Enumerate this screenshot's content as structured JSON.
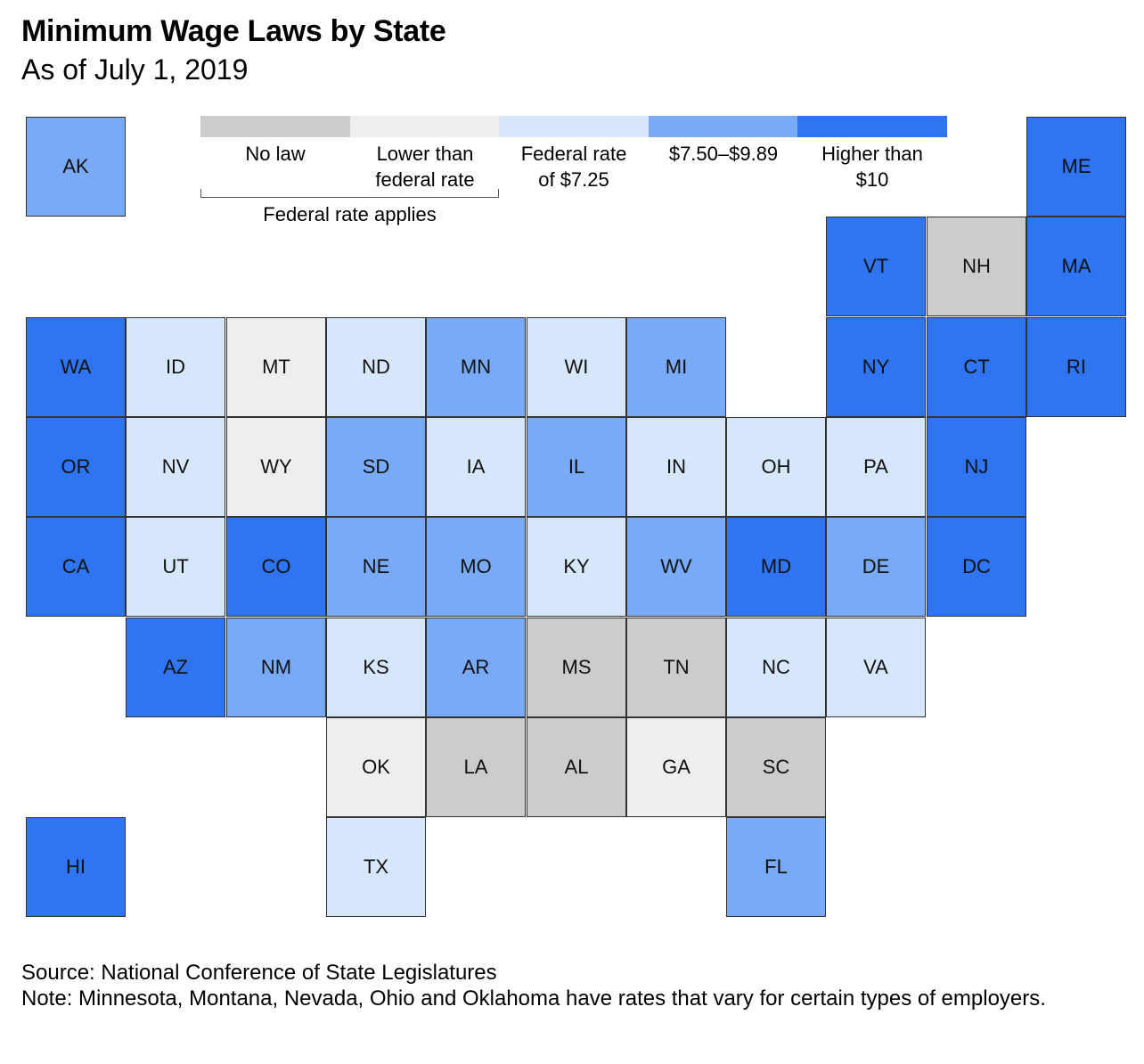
{
  "title": "Minimum Wage Laws by State",
  "subtitle": "As of July 1, 2019",
  "legend": {
    "items": [
      {
        "key": "none",
        "label": "No law",
        "color": "#cccccc"
      },
      {
        "key": "lower",
        "label": "Lower than federal rate",
        "color": "#eeeeee"
      },
      {
        "key": "federal",
        "label": "Federal rate of $7.25",
        "color": "#d6e6fb"
      },
      {
        "key": "mid",
        "label": "$7.50–$9.89",
        "color": "#78aaf7"
      },
      {
        "key": "high",
        "label": "Higher than $10",
        "color": "#2f74f3"
      }
    ],
    "group_label": "Federal rate applies"
  },
  "states": [
    {
      "code": "AK",
      "category": "mid",
      "col": 0,
      "row": 0
    },
    {
      "code": "ME",
      "category": "high",
      "col": 10,
      "row": 0
    },
    {
      "code": "VT",
      "category": "high",
      "col": 8,
      "row": 1
    },
    {
      "code": "NH",
      "category": "none",
      "col": 9,
      "row": 1
    },
    {
      "code": "MA",
      "category": "high",
      "col": 10,
      "row": 1
    },
    {
      "code": "WA",
      "category": "high",
      "col": 0,
      "row": 2
    },
    {
      "code": "ID",
      "category": "federal",
      "col": 1,
      "row": 2
    },
    {
      "code": "MT",
      "category": "lower",
      "col": 2,
      "row": 2
    },
    {
      "code": "ND",
      "category": "federal",
      "col": 3,
      "row": 2
    },
    {
      "code": "MN",
      "category": "mid",
      "col": 4,
      "row": 2
    },
    {
      "code": "WI",
      "category": "federal",
      "col": 5,
      "row": 2
    },
    {
      "code": "MI",
      "category": "mid",
      "col": 6,
      "row": 2
    },
    {
      "code": "NY",
      "category": "high",
      "col": 8,
      "row": 2
    },
    {
      "code": "CT",
      "category": "high",
      "col": 9,
      "row": 2
    },
    {
      "code": "RI",
      "category": "high",
      "col": 10,
      "row": 2
    },
    {
      "code": "OR",
      "category": "high",
      "col": 0,
      "row": 3
    },
    {
      "code": "NV",
      "category": "federal",
      "col": 1,
      "row": 3
    },
    {
      "code": "WY",
      "category": "lower",
      "col": 2,
      "row": 3
    },
    {
      "code": "SD",
      "category": "mid",
      "col": 3,
      "row": 3
    },
    {
      "code": "IA",
      "category": "federal",
      "col": 4,
      "row": 3
    },
    {
      "code": "IL",
      "category": "mid",
      "col": 5,
      "row": 3
    },
    {
      "code": "IN",
      "category": "federal",
      "col": 6,
      "row": 3
    },
    {
      "code": "OH",
      "category": "federal",
      "col": 7,
      "row": 3
    },
    {
      "code": "PA",
      "category": "federal",
      "col": 8,
      "row": 3
    },
    {
      "code": "NJ",
      "category": "high",
      "col": 9,
      "row": 3
    },
    {
      "code": "CA",
      "category": "high",
      "col": 0,
      "row": 4
    },
    {
      "code": "UT",
      "category": "federal",
      "col": 1,
      "row": 4
    },
    {
      "code": "CO",
      "category": "high",
      "col": 2,
      "row": 4
    },
    {
      "code": "NE",
      "category": "mid",
      "col": 3,
      "row": 4
    },
    {
      "code": "MO",
      "category": "mid",
      "col": 4,
      "row": 4
    },
    {
      "code": "KY",
      "category": "federal",
      "col": 5,
      "row": 4
    },
    {
      "code": "WV",
      "category": "mid",
      "col": 6,
      "row": 4
    },
    {
      "code": "MD",
      "category": "high",
      "col": 7,
      "row": 4
    },
    {
      "code": "DE",
      "category": "mid",
      "col": 8,
      "row": 4
    },
    {
      "code": "DC",
      "category": "high",
      "col": 9,
      "row": 4
    },
    {
      "code": "AZ",
      "category": "high",
      "col": 1,
      "row": 5
    },
    {
      "code": "NM",
      "category": "mid",
      "col": 2,
      "row": 5
    },
    {
      "code": "KS",
      "category": "federal",
      "col": 3,
      "row": 5
    },
    {
      "code": "AR",
      "category": "mid",
      "col": 4,
      "row": 5
    },
    {
      "code": "MS",
      "category": "none",
      "col": 5,
      "row": 5
    },
    {
      "code": "TN",
      "category": "none",
      "col": 6,
      "row": 5
    },
    {
      "code": "NC",
      "category": "federal",
      "col": 7,
      "row": 5
    },
    {
      "code": "VA",
      "category": "federal",
      "col": 8,
      "row": 5
    },
    {
      "code": "OK",
      "category": "lower",
      "col": 3,
      "row": 6
    },
    {
      "code": "LA",
      "category": "none",
      "col": 4,
      "row": 6
    },
    {
      "code": "AL",
      "category": "none",
      "col": 5,
      "row": 6
    },
    {
      "code": "GA",
      "category": "lower",
      "col": 6,
      "row": 6
    },
    {
      "code": "SC",
      "category": "none",
      "col": 7,
      "row": 6
    },
    {
      "code": "HI",
      "category": "high",
      "col": 0,
      "row": 7
    },
    {
      "code": "TX",
      "category": "federal",
      "col": 3,
      "row": 7
    },
    {
      "code": "FL",
      "category": "mid",
      "col": 7,
      "row": 7
    }
  ],
  "footer": {
    "source": "Source: National Conference of State Legislatures",
    "note": "Note: Minnesota, Montana, Nevada, Ohio and Oklahoma have rates that vary for certain types of employers."
  }
}
